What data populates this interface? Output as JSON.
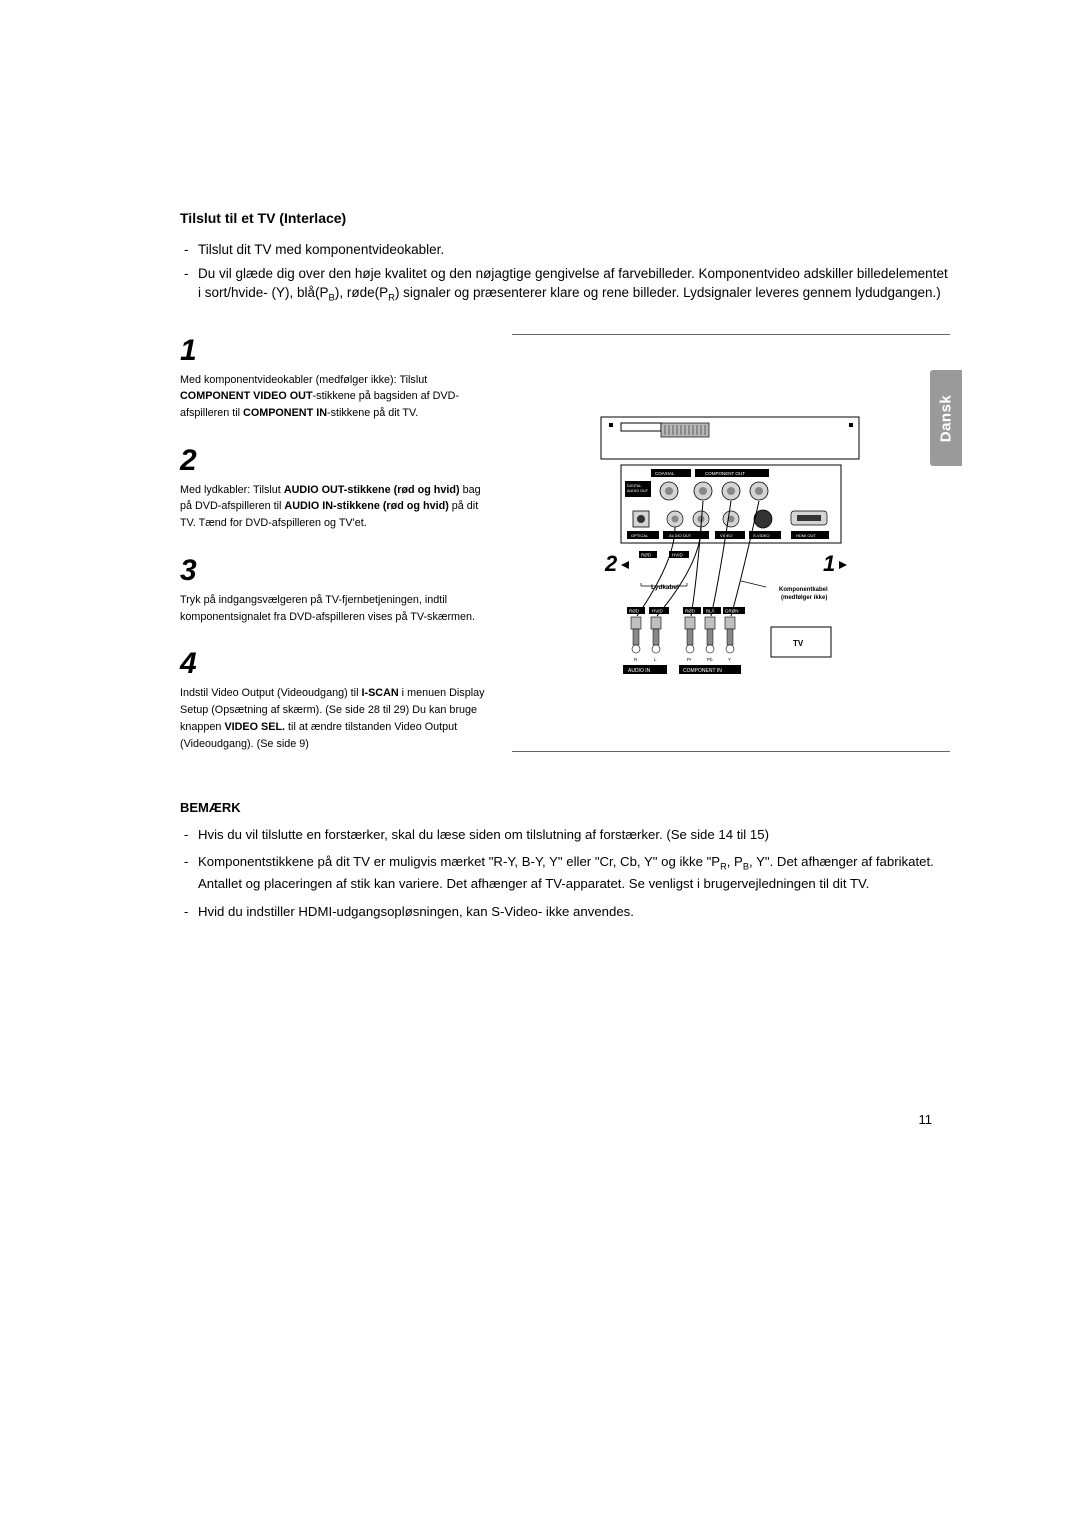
{
  "lang_tab": "Dansk",
  "page_number": "11",
  "title": "Tilslut til et TV (Interlace)",
  "intro": [
    "Tilslut dit TV med komponentvideokabler.",
    "Du vil glæde dig over den høje kvalitet og den nøjagtige gengivelse af farvebilleder. Komponentvideo adskiller billedelementet i sort/hvide- (Y), blå(P<sub>B</sub>), røde(P<sub>R</sub>) signaler og præsenterer klare og rene billeder. Lydsignaler leveres gennem lydudgangen.)"
  ],
  "steps": [
    {
      "num": "1",
      "html": "Med komponentvideokabler (medfølger ikke): Tilslut <b>COMPONENT VIDEO OUT</b>-stikkene på bagsiden af DVD-afspilleren til <b>COMPONENT IN</b>-stikkene på dit TV."
    },
    {
      "num": "2",
      "html": "Med lydkabler: Tilslut <b>AUDIO OUT-stikkene (rød og hvid)</b> bag på DVD-afspilleren til <b>AUDIO IN-stikkene (rød og hvid)</b> på dit TV. Tænd for DVD-afspilleren og TV'et."
    },
    {
      "num": "3",
      "html": "Tryk på indgangsvælgeren på TV-fjernbetjeningen, indtil komponentsignalet fra DVD-afspilleren vises på TV-skærmen."
    },
    {
      "num": "4",
      "html": "Indstil Video Output (Videoudgang) til <b>I-SCAN</b> i menuen Display Setup (Opsætning af skærm). (Se side 28 til 29) Du kan bruge knappen <b>VIDEO SEL.</b> til at ændre tilstanden Video Output (Videoudgang). (Se side 9)"
    }
  ],
  "note_heading": "BEMÆRK",
  "notes": [
    "Hvis du vil tilslutte en forstærker, skal du læse siden om tilslutning af forstærker. (Se side 14 til 15)",
    "Komponentstikkene på dit TV er muligvis mærket \"R-Y, B-Y, Y\" eller \"Cr, Cb, Y\" og ikke \"P<sub>R</sub>, P<sub>B</sub>, Y\". Det afhænger af fabrikatet. Antallet og placeringen af stik kan variere. Det afhænger af TV-apparatet. Se venligst i brugervejledningen til dit TV.",
    "Hvid du indstiller HDMI-udgangsopløsningen, kan S-Video- ikke anvendes."
  ],
  "diagram": {
    "type": "connection-diagram",
    "background_color": "#ffffff",
    "border_color": "#000000",
    "top_labels": {
      "rod": "RØD",
      "bla": "BLÅ",
      "gron": "GRØN"
    },
    "port_groups": {
      "coaxial": "COAXIAL",
      "component": "COMPONENT OUT",
      "digital": "DIGITAL AUDIO OUT",
      "optical": "OPTICAL",
      "audio_out": "AUDIO OUT",
      "video": "VIDEO",
      "svideo": "S-VIDEO",
      "hdmi": "HDMI OUT"
    },
    "callouts": {
      "one": "1",
      "two": "2"
    },
    "cable_labels": {
      "lydkabel": "Lydkabel",
      "komponent": "Komponentkabel\n(medfølger ikke)"
    },
    "plug_colors": {
      "rod": "RØD",
      "hvid": "HVID",
      "rod2": "RØD",
      "bla": "BLÅ",
      "gron": "GRØN"
    },
    "tv_label": "TV",
    "bottom_labels": {
      "audio_in": "AUDIO IN",
      "component_in": "COMPONENT IN"
    },
    "colors": {
      "black": "#000000",
      "grey_fill": "#cfcfcf",
      "box_fill": "#1a1a1a",
      "white": "#ffffff"
    }
  }
}
